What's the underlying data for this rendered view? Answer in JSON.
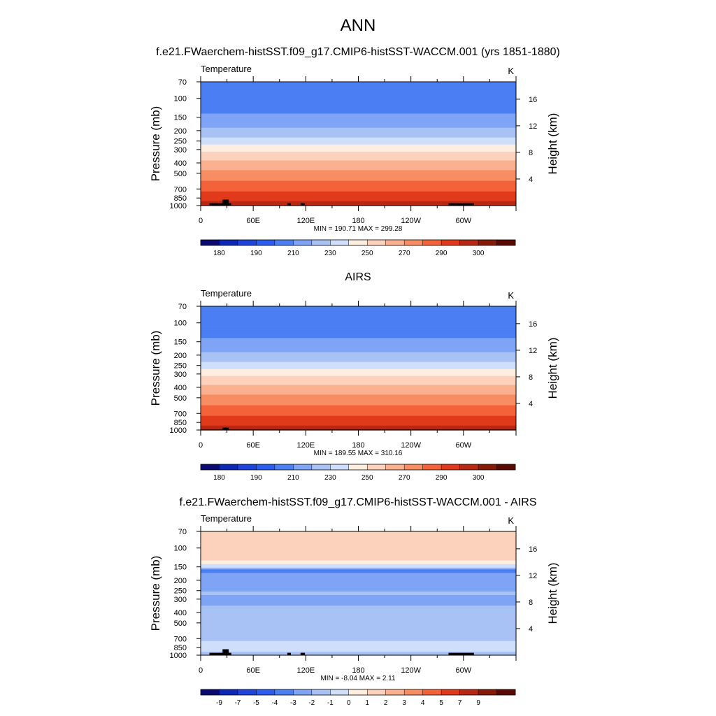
{
  "title": "ANN",
  "chart_data": [
    {
      "type": "heatmap",
      "title": "f.e21.FWaerchem-histSST.f09_g17.CMIP6-histSST-WACCM.001 (yrs 1851-1880)",
      "variable": "Temperature",
      "units": "K",
      "ylabel": "Pressure (mb)",
      "y2label": "Height (km)",
      "xticks": [
        "0",
        "60E",
        "120E",
        "180",
        "120W",
        "60W"
      ],
      "yticks": [
        "70",
        "100",
        "150",
        "200",
        "250",
        "300",
        "400",
        "500",
        "700",
        "850",
        "1000"
      ],
      "y2ticks": [
        "16",
        "12",
        "8",
        "4"
      ],
      "ylim": [
        1000,
        70
      ],
      "stats_text": "MIN = 190.71  MAX = 299.28",
      "min": 190.71,
      "max": 299.28,
      "levels": [
        175,
        180,
        185,
        190,
        200,
        210,
        220,
        230,
        240,
        250,
        260,
        270,
        280,
        290,
        295,
        300
      ],
      "colorbar_labels": [
        "180",
        "190",
        "210",
        "230",
        "250",
        "270",
        "290",
        "300"
      ],
      "colors": [
        "#0a0a70",
        "#0d28b4",
        "#1e44dc",
        "#2a5cf0",
        "#4b7ff2",
        "#7fa4f5",
        "#a8c2f5",
        "#cfdffb",
        "#fdeee0",
        "#fcd2bc",
        "#fbb090",
        "#f88c62",
        "#f4623a",
        "#e03a1b",
        "#b82812",
        "#861a06",
        "#5a0a02"
      ],
      "profile": [
        [
          70,
          190
        ],
        [
          100,
          192
        ],
        [
          130,
          198
        ],
        [
          150,
          203
        ],
        [
          180,
          208
        ],
        [
          200,
          213
        ],
        [
          230,
          220
        ],
        [
          260,
          228
        ],
        [
          300,
          237
        ],
        [
          350,
          246
        ],
        [
          400,
          253
        ],
        [
          450,
          258
        ],
        [
          500,
          263
        ],
        [
          600,
          271
        ],
        [
          700,
          278
        ],
        [
          800,
          284
        ],
        [
          900,
          289
        ],
        [
          950,
          292
        ],
        [
          1000,
          295
        ]
      ],
      "topography_blocks": [
        {
          "lon": [
            10,
            35
          ],
          "p_top": 950
        },
        {
          "lon": [
            25,
            32
          ],
          "p_top": 880
        },
        {
          "lon": [
            99,
            103
          ],
          "p_top": 950
        },
        {
          "lon": [
            114,
            119
          ],
          "p_top": 950
        },
        {
          "lon": [
            283,
            312
          ],
          "p_top": 950
        }
      ]
    },
    {
      "type": "heatmap",
      "title": "AIRS",
      "variable": "Temperature",
      "units": "K",
      "ylabel": "Pressure (mb)",
      "y2label": "Height (km)",
      "xticks": [
        "0",
        "60E",
        "120E",
        "180",
        "120W",
        "60W"
      ],
      "yticks": [
        "70",
        "100",
        "150",
        "200",
        "250",
        "300",
        "400",
        "500",
        "700",
        "850",
        "1000"
      ],
      "y2ticks": [
        "16",
        "12",
        "8",
        "4"
      ],
      "ylim": [
        1000,
        70
      ],
      "stats_text": "MIN = 189.55  MAX = 310.16",
      "min": 189.55,
      "max": 310.16,
      "levels": [
        175,
        180,
        185,
        190,
        200,
        210,
        220,
        230,
        240,
        250,
        260,
        270,
        280,
        290,
        295,
        300
      ],
      "colorbar_labels": [
        "180",
        "190",
        "210",
        "230",
        "250",
        "270",
        "290",
        "300"
      ],
      "colors": [
        "#0a0a70",
        "#0d28b4",
        "#1e44dc",
        "#2a5cf0",
        "#4b7ff2",
        "#7fa4f5",
        "#a8c2f5",
        "#cfdffb",
        "#fdeee0",
        "#fcd2bc",
        "#fbb090",
        "#f88c62",
        "#f4623a",
        "#e03a1b",
        "#b82812",
        "#861a06",
        "#5a0a02"
      ],
      "profile": [
        [
          70,
          190
        ],
        [
          100,
          192
        ],
        [
          130,
          198
        ],
        [
          150,
          203
        ],
        [
          180,
          208
        ],
        [
          200,
          213
        ],
        [
          230,
          220
        ],
        [
          260,
          228
        ],
        [
          300,
          237
        ],
        [
          350,
          246
        ],
        [
          400,
          253
        ],
        [
          450,
          258
        ],
        [
          500,
          263
        ],
        [
          600,
          271
        ],
        [
          700,
          278
        ],
        [
          800,
          284
        ],
        [
          900,
          289
        ],
        [
          950,
          292
        ],
        [
          1000,
          296
        ]
      ],
      "topography_blocks": [
        {
          "lon": [
            25,
            32
          ],
          "p_top": 950
        }
      ]
    },
    {
      "type": "heatmap",
      "title": "f.e21.FWaerchem-histSST.f09_g17.CMIP6-histSST-WACCM.001 - AIRS",
      "variable": "Temperature",
      "units": "K",
      "ylabel": "Pressure (mb)",
      "y2label": "Height (km)",
      "xticks": [
        "0",
        "60E",
        "120E",
        "180",
        "120W",
        "60W"
      ],
      "yticks": [
        "70",
        "100",
        "150",
        "200",
        "250",
        "300",
        "400",
        "500",
        "700",
        "850",
        "1000"
      ],
      "y2ticks": [
        "16",
        "12",
        "8",
        "4"
      ],
      "ylim": [
        1000,
        70
      ],
      "stats_text": "MIN =  -8.04  MAX =   2.11",
      "min": -8.04,
      "max": 2.11,
      "levels": [
        -10,
        -8,
        -6,
        -4.5,
        -3.5,
        -2.5,
        -1.5,
        -0.5,
        0.5,
        1.5,
        2.5,
        3.5,
        4.5,
        6,
        8,
        10
      ],
      "colorbar_labels": [
        "-9",
        "-7",
        "-5",
        "-4",
        "-3",
        "-2",
        "-1",
        "0",
        "1",
        "2",
        "3",
        "4",
        "5",
        "7",
        "9"
      ],
      "colors": [
        "#0a0a70",
        "#0d28b4",
        "#1e44dc",
        "#2a5cf0",
        "#4b7ff2",
        "#7fa4f5",
        "#a8c2f5",
        "#cfdffb",
        "#fdeee0",
        "#fcd2bc",
        "#fbb090",
        "#f88c62",
        "#f4623a",
        "#e03a1b",
        "#b82812",
        "#861a06",
        "#5a0a02"
      ],
      "profile": [
        [
          70,
          1.2
        ],
        [
          120,
          1.2
        ],
        [
          135,
          0.2
        ],
        [
          150,
          -1.2
        ],
        [
          160,
          -3.6
        ],
        [
          200,
          -3.2
        ],
        [
          260,
          -2.4
        ],
        [
          320,
          -2.8
        ],
        [
          400,
          -1.8
        ],
        [
          500,
          -2.2
        ],
        [
          600,
          -1.8
        ],
        [
          700,
          -2.0
        ],
        [
          800,
          -0.8
        ],
        [
          900,
          -1.2
        ],
        [
          1000,
          -2.2
        ]
      ],
      "topography_blocks": [
        {
          "lon": [
            10,
            35
          ],
          "p_top": 950
        },
        {
          "lon": [
            25,
            32
          ],
          "p_top": 880
        },
        {
          "lon": [
            99,
            103
          ],
          "p_top": 950
        },
        {
          "lon": [
            114,
            119
          ],
          "p_top": 950
        },
        {
          "lon": [
            283,
            312
          ],
          "p_top": 950
        }
      ]
    }
  ]
}
